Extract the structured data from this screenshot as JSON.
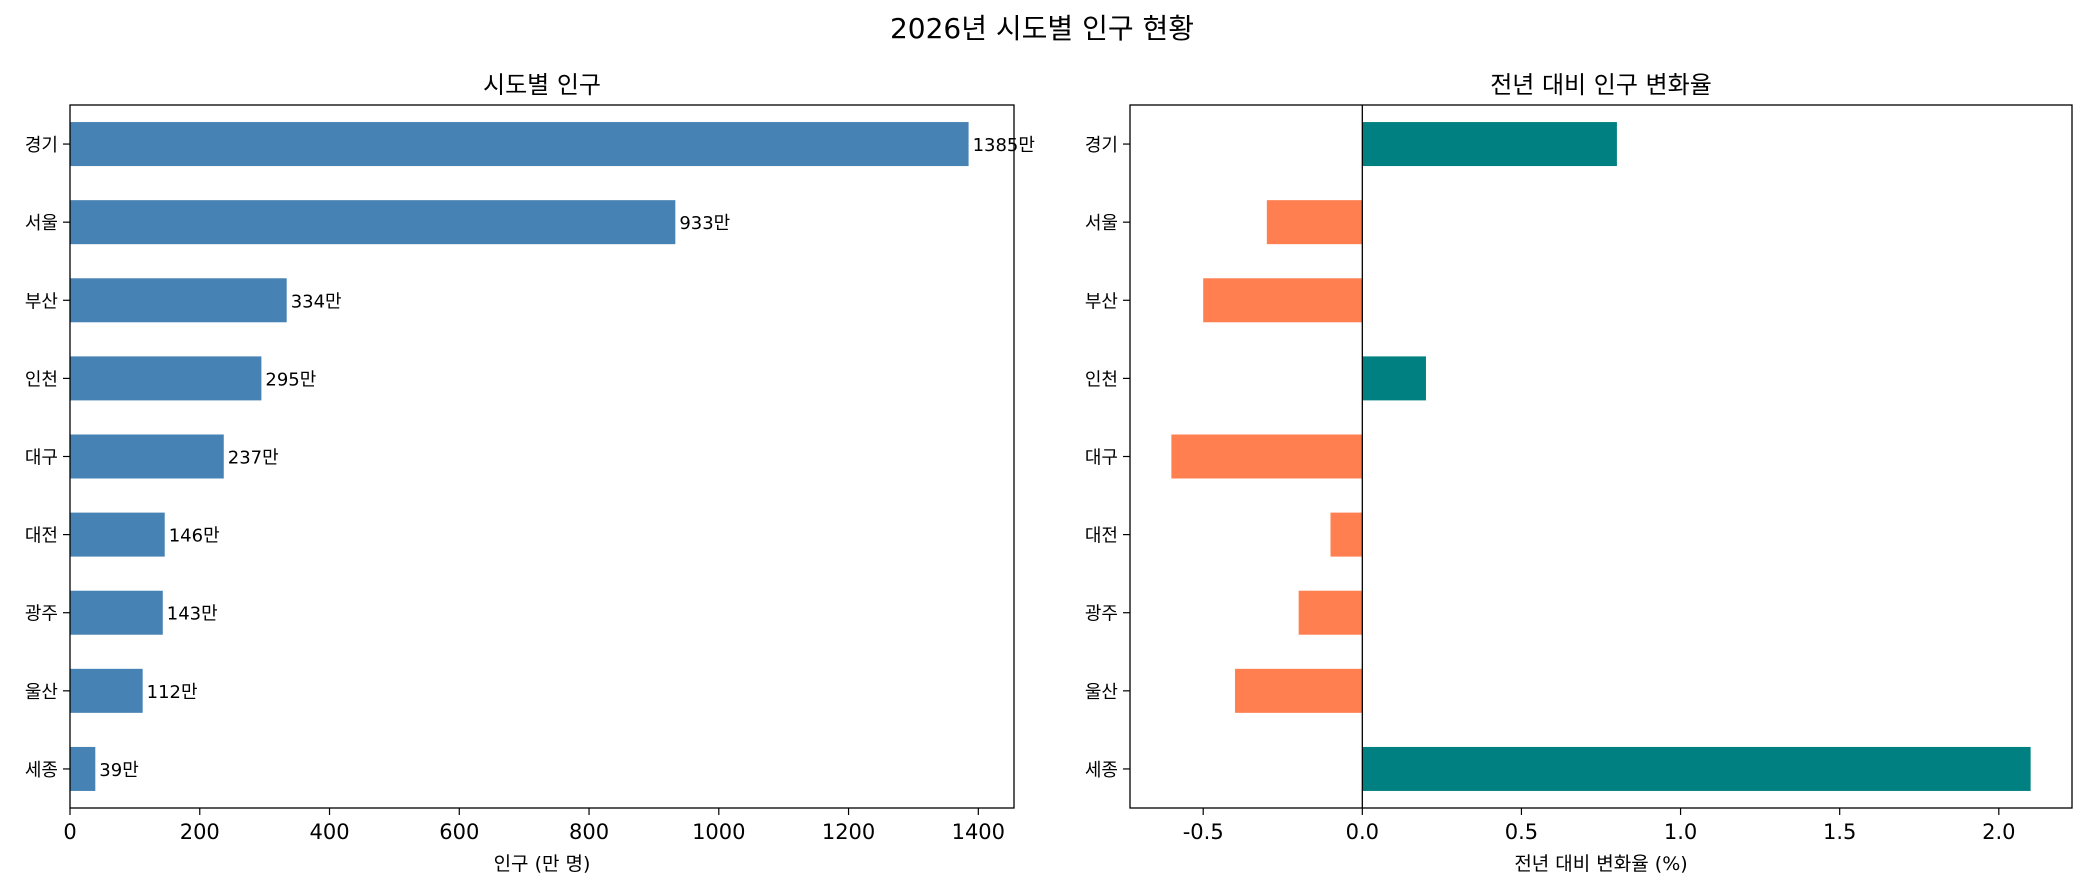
{
  "suptitle": "2026년 시도별 인구 현황",
  "chart_data": [
    {
      "type": "bar",
      "orientation": "horizontal",
      "title": "시도별 인구",
      "xlabel": "인구 (만 명)",
      "ylabel": "",
      "categories": [
        "경기",
        "서울",
        "부산",
        "인천",
        "대구",
        "대전",
        "광주",
        "울산",
        "세종"
      ],
      "values": [
        1385,
        933,
        334,
        295,
        237,
        146,
        143,
        112,
        39
      ],
      "data_labels": [
        "1385만",
        "933만",
        "334만",
        "295만",
        "237만",
        "146만",
        "143만",
        "112만",
        "39만"
      ],
      "xlim": [
        0,
        1455
      ],
      "xticks": [
        0,
        200,
        400,
        600,
        800,
        1000,
        1200,
        1400
      ],
      "xtick_labels": [
        "0",
        "200",
        "400",
        "600",
        "800",
        "1000",
        "1200",
        "1400"
      ],
      "bar_color": "#4682b4",
      "grid": false
    },
    {
      "type": "bar",
      "orientation": "horizontal",
      "title": "전년 대비 인구 변화율",
      "xlabel": "전년 대비 변화율 (%)",
      "ylabel": "",
      "categories": [
        "경기",
        "서울",
        "부산",
        "인천",
        "대구",
        "대전",
        "광주",
        "울산",
        "세종"
      ],
      "values": [
        0.8,
        -0.3,
        -0.5,
        0.2,
        -0.6,
        -0.1,
        -0.2,
        -0.4,
        2.1
      ],
      "xlim": [
        -0.73,
        2.23
      ],
      "xticks": [
        -0.5,
        0.0,
        0.5,
        1.0,
        1.5,
        2.0
      ],
      "xtick_labels": [
        "-0.5",
        "0.0",
        "0.5",
        "1.0",
        "1.5",
        "2.0"
      ],
      "positive_color": "#008080",
      "negative_color": "#ff7f50",
      "zero_line": true,
      "grid": false
    }
  ]
}
